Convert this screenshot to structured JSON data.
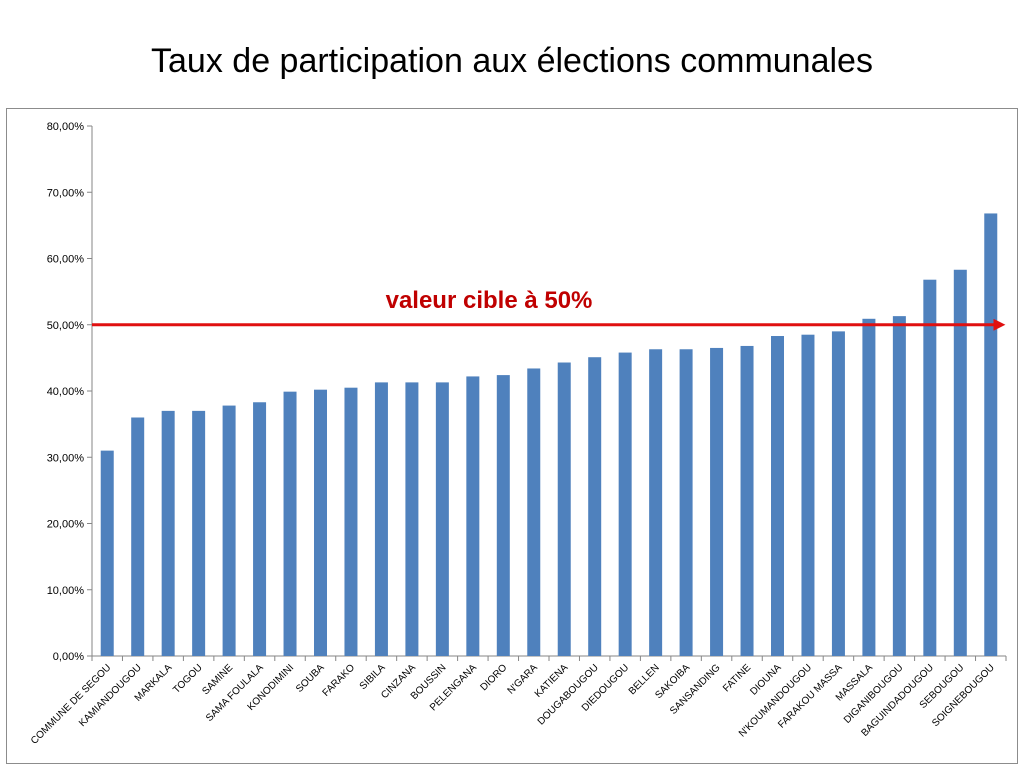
{
  "title": "Taux de participation aux élections communales",
  "chart_data": {
    "type": "bar",
    "title": "Taux de participation aux élections communales",
    "xlabel": "",
    "ylabel": "",
    "ylim": [
      0,
      80
    ],
    "yticks": [
      "0,00%",
      "10,00%",
      "20,00%",
      "30,00%",
      "40,00%",
      "50,00%",
      "60,00%",
      "70,00%",
      "80,00%"
    ],
    "grid": false,
    "categories": [
      "COMMUNE DE SEGOU",
      "KAMIANDOUGOU",
      "MARKALA",
      "TOGOU",
      "SAMINE",
      "SAMA FOULALA",
      "KONODIMINI",
      "SOUBA",
      "FARAKO",
      "SIBILA",
      "CINZANA",
      "BOUSSIN",
      "PELENGANA",
      "DIORO",
      "N'GARA",
      "KATIENA",
      "DOUGABOUGOU",
      "DIEDOUGOU",
      "BELLEN",
      "SAKOIBA",
      "SANSANDING",
      "FATINE",
      "DIOUNA",
      "N'KOUMANDOUGOU",
      "FARAKOU MASSA",
      "MASSALA",
      "DIGANIBOUGOU",
      "BAGUINDADOUGOU",
      "SEBOUGOU",
      "SOIGNEBOUGOU"
    ],
    "values": [
      31.0,
      36.0,
      37.0,
      37.0,
      37.8,
      38.3,
      39.9,
      40.2,
      40.5,
      41.3,
      41.3,
      41.3,
      42.2,
      42.4,
      43.4,
      44.3,
      45.1,
      45.8,
      46.3,
      46.3,
      46.5,
      46.8,
      48.3,
      48.5,
      49.0,
      50.9,
      51.3,
      56.8,
      58.3,
      66.8
    ],
    "bar_color": "#4f81bd",
    "target": {
      "value": 50,
      "label": "valeur cible à 50%",
      "color": "#e01010",
      "label_color": "#c00000"
    }
  }
}
